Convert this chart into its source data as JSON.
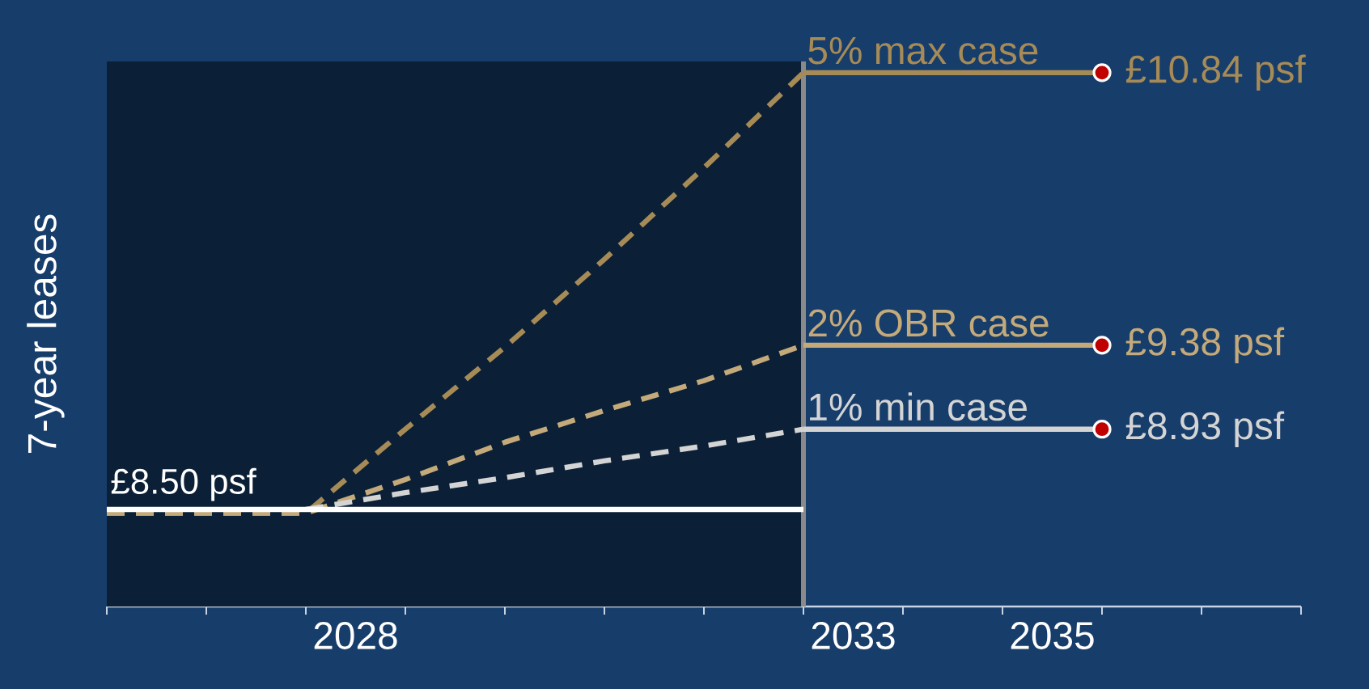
{
  "chart_data": {
    "type": "line",
    "ylabel": "7-year leases",
    "xlim": [
      2026,
      2038
    ],
    "ylim": [
      7.98,
      10.9
    ],
    "xticks": [
      {
        "value": 2026,
        "label": null
      },
      {
        "value": 2027,
        "label": null
      },
      {
        "value": 2028,
        "label": null
      },
      {
        "value": 2028.5,
        "label": "2028"
      },
      {
        "value": 2029,
        "label": null
      },
      {
        "value": 2030,
        "label": null
      },
      {
        "value": 2031,
        "label": null
      },
      {
        "value": 2032,
        "label": null
      },
      {
        "value": 2033,
        "label": null
      },
      {
        "value": 2033.5,
        "label": "2033"
      },
      {
        "value": 2034,
        "label": null
      },
      {
        "value": 2035,
        "label": null
      },
      {
        "value": 2035.5,
        "label": "2035"
      },
      {
        "value": 2036,
        "label": null
      },
      {
        "value": 2037,
        "label": null
      },
      {
        "value": 2038,
        "label": null
      }
    ],
    "tick_labels": "x",
    "grid": false,
    "bands": [
      {
        "axis": "x",
        "from": 2026,
        "to": 2033,
        "color": "#0b1f36"
      }
    ],
    "ref_lines": [
      {
        "axis": "x",
        "value": 2033,
        "color": "#8a8a8a"
      }
    ],
    "series": [
      {
        "color": "#a68b57",
        "line_style": "dashed",
        "x": [
          2026,
          2027,
          2028,
          2029,
          2030,
          2031,
          2032,
          2033
        ],
        "values": [
          8.48,
          8.48,
          8.48,
          8.93,
          9.37,
          9.84,
          10.33,
          10.84
        ]
      },
      {
        "color": "#c4aa7a",
        "line_style": "dashed",
        "x": [
          2026,
          2027,
          2028,
          2029,
          2030,
          2031,
          2032,
          2033
        ],
        "values": [
          8.48,
          8.48,
          8.48,
          8.66,
          8.86,
          9.03,
          9.19,
          9.38
        ]
      },
      {
        "color": "#d4d4d4",
        "line_style": "dashed",
        "x": [
          2028,
          2029,
          2030,
          2031,
          2032,
          2033
        ],
        "values": [
          8.5,
          8.59,
          8.67,
          8.76,
          8.84,
          8.93
        ]
      },
      {
        "name": "£8.50 psf",
        "color": "#ffffff",
        "line_style": "solid",
        "x": [
          2026,
          2033
        ],
        "values": [
          8.5,
          8.5
        ]
      },
      {
        "name": "5% max case",
        "color": "#a68b57",
        "line_style": "solid",
        "x": [
          2033,
          2036
        ],
        "values": [
          10.84,
          10.84
        ],
        "value_labels": [
          null,
          "£10.84 psf"
        ]
      },
      {
        "name": "2% OBR case",
        "color": "#c4aa7a",
        "line_style": "solid",
        "x": [
          2033,
          2036
        ],
        "values": [
          9.38,
          9.38
        ],
        "value_labels": [
          null,
          "£9.38 psf"
        ]
      },
      {
        "name": "1% min case",
        "color": "#d4d4d4",
        "line_style": "solid",
        "x": [
          2033,
          2036
        ],
        "values": [
          8.93,
          8.93
        ],
        "value_labels": [
          null,
          "£8.93 psf"
        ]
      },
      {
        "type": "scatter",
        "color": "#c00000",
        "marker": "circle",
        "x": [
          2036,
          2036,
          2036
        ],
        "values": [
          10.84,
          9.38,
          8.93
        ]
      }
    ]
  }
}
